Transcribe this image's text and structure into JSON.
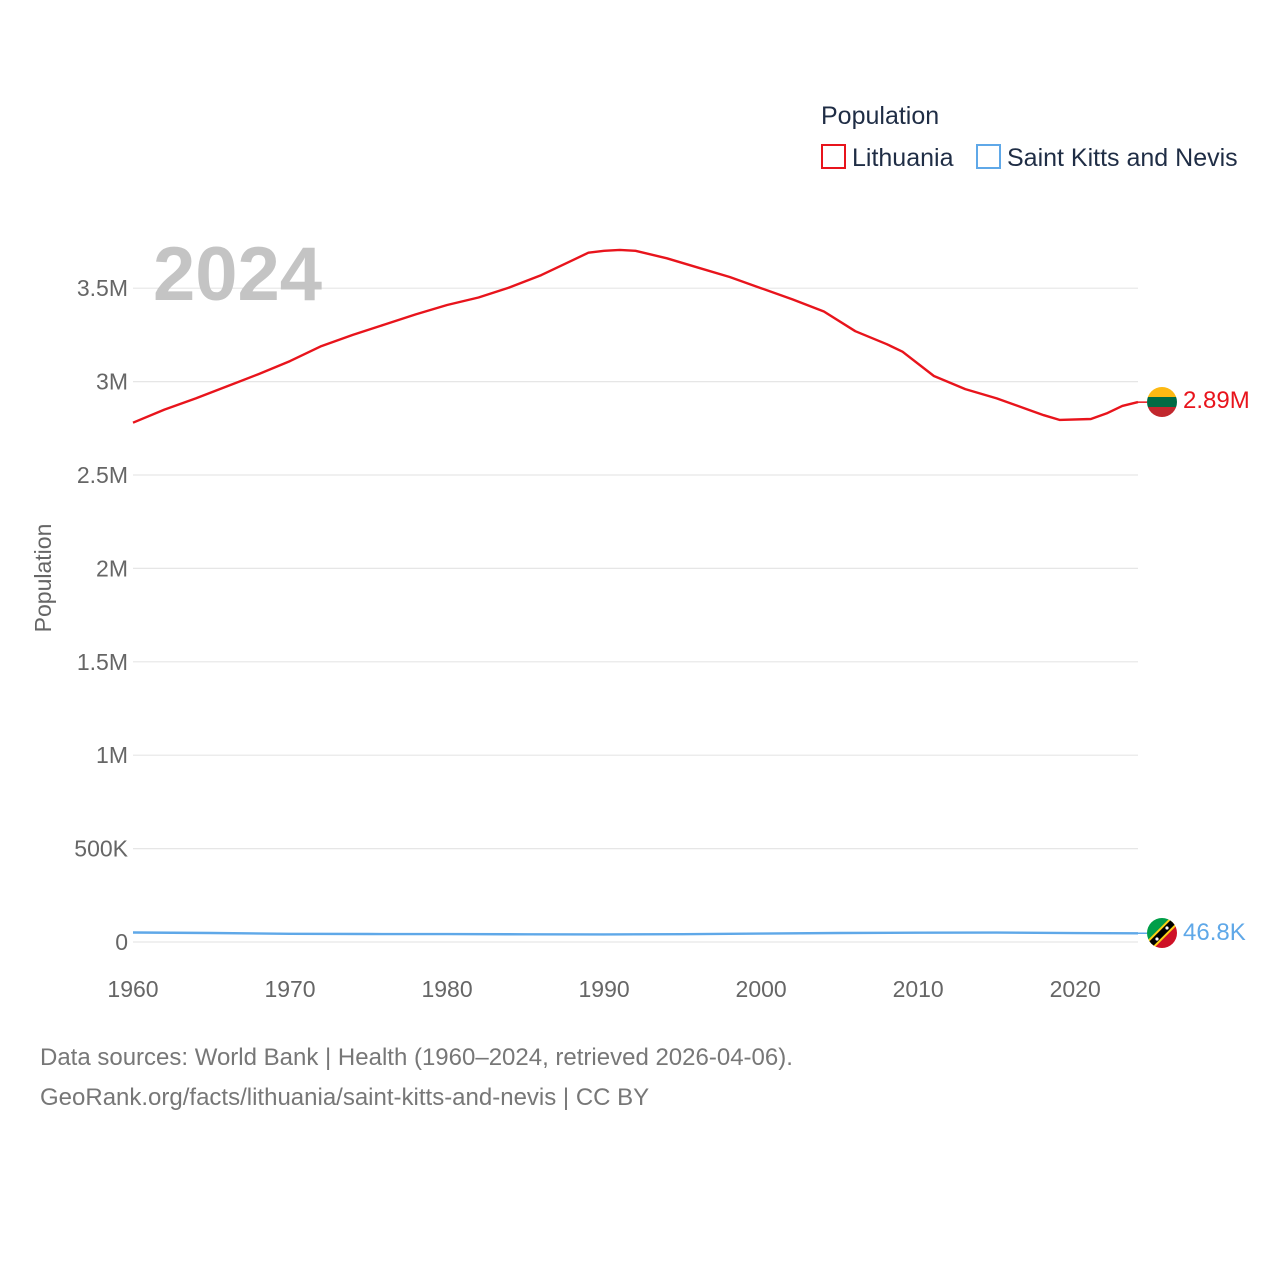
{
  "chart_data": {
    "type": "line",
    "title": "Population",
    "year_label": "2024",
    "ylabel": "Population",
    "xlabel": "",
    "xlim": [
      1960,
      2024
    ],
    "ylim": [
      0,
      3750000
    ],
    "x_ticks": [
      1960,
      1970,
      1980,
      1990,
      2000,
      2010,
      2020
    ],
    "y_ticks": [
      {
        "value": 0,
        "label": "0"
      },
      {
        "value": 500000,
        "label": "500K"
      },
      {
        "value": 1000000,
        "label": "1M"
      },
      {
        "value": 1500000,
        "label": "1.5M"
      },
      {
        "value": 2000000,
        "label": "2M"
      },
      {
        "value": 2500000,
        "label": "2.5M"
      },
      {
        "value": 3000000,
        "label": "3M"
      },
      {
        "value": 3500000,
        "label": "3.5M"
      }
    ],
    "grid": true,
    "legend_position": "top-right",
    "series": [
      {
        "name": "Lithuania",
        "color": "#e8141c",
        "end_label": "2.89M",
        "flag": "lithuania-flag",
        "points": [
          [
            1960,
            2780000
          ],
          [
            1962,
            2850000
          ],
          [
            1964,
            2910000
          ],
          [
            1966,
            2975000
          ],
          [
            1968,
            3040000
          ],
          [
            1970,
            3110000
          ],
          [
            1972,
            3190000
          ],
          [
            1974,
            3250000
          ],
          [
            1976,
            3305000
          ],
          [
            1978,
            3360000
          ],
          [
            1980,
            3410000
          ],
          [
            1982,
            3450000
          ],
          [
            1984,
            3505000
          ],
          [
            1986,
            3570000
          ],
          [
            1988,
            3650000
          ],
          [
            1989,
            3690000
          ],
          [
            1990,
            3700000
          ],
          [
            1991,
            3705000
          ],
          [
            1992,
            3700000
          ],
          [
            1994,
            3660000
          ],
          [
            1996,
            3610000
          ],
          [
            1998,
            3560000
          ],
          [
            2000,
            3500000
          ],
          [
            2002,
            3440000
          ],
          [
            2004,
            3375000
          ],
          [
            2006,
            3270000
          ],
          [
            2008,
            3200000
          ],
          [
            2009,
            3160000
          ],
          [
            2011,
            3030000
          ],
          [
            2013,
            2960000
          ],
          [
            2015,
            2910000
          ],
          [
            2017,
            2850000
          ],
          [
            2018,
            2820000
          ],
          [
            2019,
            2795000
          ],
          [
            2021,
            2800000
          ],
          [
            2022,
            2830000
          ],
          [
            2023,
            2870000
          ],
          [
            2024,
            2890000
          ]
        ]
      },
      {
        "name": "Saint Kitts and Nevis",
        "color": "#5fa8e8",
        "end_label": "46.8K",
        "flag": "saint-kitts-and-nevis-flag",
        "points": [
          [
            1960,
            51000
          ],
          [
            1965,
            48000
          ],
          [
            1970,
            44000
          ],
          [
            1975,
            43000
          ],
          [
            1980,
            42500
          ],
          [
            1985,
            41000
          ],
          [
            1990,
            40500
          ],
          [
            1995,
            42000
          ],
          [
            2000,
            45000
          ],
          [
            2005,
            48000
          ],
          [
            2010,
            50000
          ],
          [
            2015,
            50500
          ],
          [
            2020,
            47500
          ],
          [
            2024,
            46800
          ]
        ]
      }
    ]
  },
  "footer": {
    "sources": "Data sources: World Bank | Health (1960–2024, retrieved 2026-04-06).",
    "attribution": "GeoRank.org/facts/lithuania/saint-kitts-and-nevis | CC BY"
  }
}
